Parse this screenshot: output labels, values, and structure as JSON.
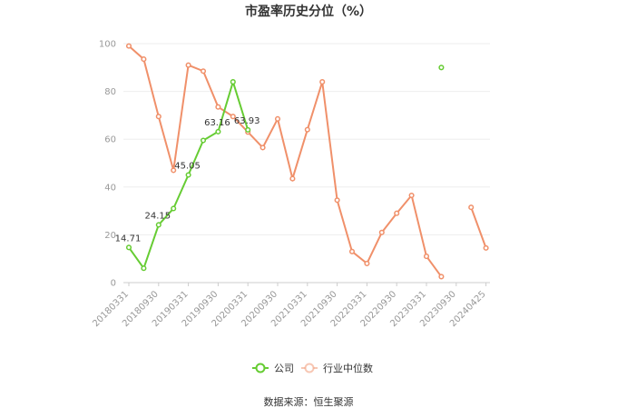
{
  "chart_data": {
    "type": "line",
    "title": "市盈率历史分位（%）",
    "ylim": [
      0,
      100
    ],
    "yticks": [
      0,
      20,
      40,
      60,
      80,
      100
    ],
    "x_tick_labels": [
      "20180331",
      "20180930",
      "20190331",
      "20190930",
      "20200331",
      "20200930",
      "20210331",
      "20210930",
      "20220331",
      "20220930",
      "20230331",
      "20230930",
      "20240425"
    ],
    "series": [
      {
        "name": "公司",
        "color": "#66cc33",
        "points": [
          [
            0,
            14.71
          ],
          [
            1,
            6
          ],
          [
            2,
            24.15
          ],
          [
            3,
            31
          ],
          [
            4,
            45.05
          ],
          [
            5,
            59.5
          ],
          [
            6,
            63.16
          ],
          [
            7,
            84
          ],
          [
            8,
            63.93
          ],
          [
            21,
            90
          ]
        ],
        "segments": [
          [
            0,
            1,
            2,
            3,
            4,
            5,
            6,
            7,
            8
          ],
          [
            21
          ]
        ],
        "labels": [
          {
            "i": 0,
            "text": "14.71"
          },
          {
            "i": 2,
            "text": "24.15"
          },
          {
            "i": 4,
            "text": "45.05"
          },
          {
            "i": 6,
            "text": "63.16"
          },
          {
            "i": 8,
            "text": "63.93"
          }
        ]
      },
      {
        "name": "行业中位数",
        "color": "#f0906a",
        "points": [
          [
            0,
            99
          ],
          [
            1,
            93.5
          ],
          [
            2,
            69.5
          ],
          [
            3,
            47
          ],
          [
            4,
            91
          ],
          [
            5,
            88.5
          ],
          [
            6,
            73.5
          ],
          [
            7,
            69.5
          ],
          [
            8,
            63
          ],
          [
            9,
            56.5
          ],
          [
            10,
            68.5
          ],
          [
            11,
            43.5
          ],
          [
            12,
            64
          ],
          [
            13,
            84
          ],
          [
            14,
            34.5
          ],
          [
            15,
            13
          ],
          [
            16,
            8
          ],
          [
            17,
            21
          ],
          [
            18,
            29
          ],
          [
            19,
            36.5
          ],
          [
            20,
            11
          ],
          [
            21,
            2.5
          ],
          [
            23,
            31.5
          ],
          [
            24,
            14.5
          ]
        ],
        "segments": [
          [
            0,
            1,
            2,
            3,
            4,
            5,
            6,
            7,
            8,
            9,
            10,
            11,
            12,
            13,
            14,
            15,
            16,
            17,
            18,
            19,
            20,
            21
          ],
          [
            22,
            23
          ]
        ]
      }
    ],
    "legend": {
      "position": "bottom-center",
      "items": [
        "公司",
        "行业中位数"
      ]
    },
    "grid": true
  },
  "footer": {
    "source": "数据来源：恒生聚源"
  }
}
